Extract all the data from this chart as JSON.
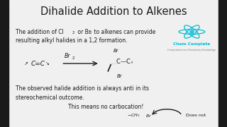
{
  "title": "Dihalide Addition to Alkenes",
  "title_fontsize": 10.5,
  "background_color": "#f0f0f0",
  "side_bar_color": "#1a1a1a",
  "text_color": "#1a1a1a",
  "para1_line1a": "The addition of Cl",
  "para1_sub1": "2",
  "para1_line1b": " or Br",
  "para1_sub2": "2",
  "para1_line1c": " to alkenes can provide",
  "para1_line2": "resulting alkyl halides in a 1,2 formation.",
  "para2_line1": "The observed halide addition is always anti in its",
  "para2_line2": "stereochemical outcome.",
  "para2_line3": "This means no carbocation!",
  "bottom_text": "Does not",
  "logo_color": "#00bcd4",
  "logo_text": "Chem Complete",
  "logo_subtext": "Comprehensive Chemistry Knowledge",
  "bar_width": 0.038
}
